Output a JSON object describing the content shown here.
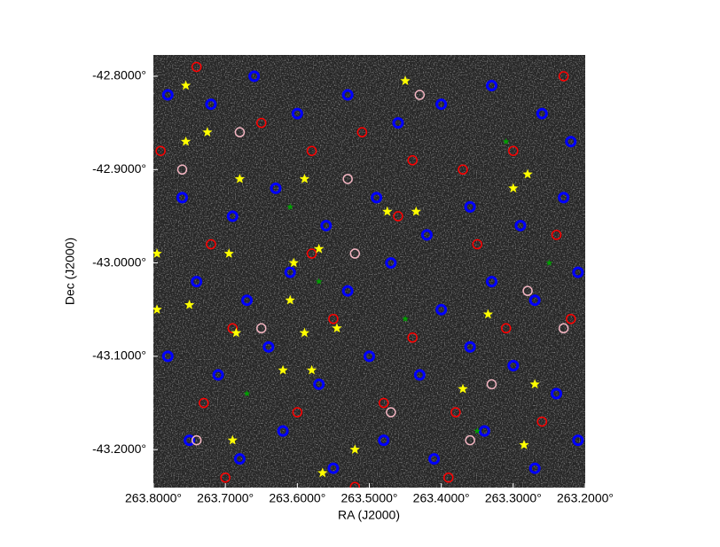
{
  "chart_data": {
    "type": "scatter",
    "xlabel": "RA (J2000)",
    "ylabel": "Dec (J2000)",
    "xlim": [
      263.8,
      263.2
    ],
    "ylim": [
      -42.7772,
      -43.2407
    ],
    "xticks": [
      {
        "value": 263.8,
        "label": "263.8000°"
      },
      {
        "value": 263.7,
        "label": "263.7000°"
      },
      {
        "value": 263.6,
        "label": "263.6000°"
      },
      {
        "value": 263.5,
        "label": "263.5000°"
      },
      {
        "value": 263.4,
        "label": "263.4000°"
      },
      {
        "value": 263.3,
        "label": "263.3000°"
      },
      {
        "value": 263.2,
        "label": "263.2000°"
      }
    ],
    "yticks": [
      {
        "value": -42.8,
        "label": "-42.8000°"
      },
      {
        "value": -42.9,
        "label": "-42.9000°"
      },
      {
        "value": -43.0,
        "label": "-43.0000°"
      },
      {
        "value": -43.1,
        "label": "-43.1000°"
      },
      {
        "value": -43.2,
        "label": "-43.2000°"
      }
    ],
    "series": [
      {
        "color": "#0000ff",
        "marker": "ring-thick",
        "x": [
          263.78,
          263.72,
          263.66,
          263.6,
          263.53,
          263.46,
          263.4,
          263.33,
          263.26,
          263.22,
          263.76,
          263.69,
          263.63,
          263.56,
          263.49,
          263.42,
          263.36,
          263.29,
          263.23,
          263.74,
          263.67,
          263.61,
          263.53,
          263.47,
          263.4,
          263.33,
          263.27,
          263.21,
          263.78,
          263.71,
          263.64,
          263.57,
          263.5,
          263.43,
          263.36,
          263.3,
          263.24,
          263.75,
          263.68,
          263.62,
          263.55,
          263.48,
          263.41,
          263.34,
          263.27,
          263.21
        ],
        "y": [
          -42.82,
          -42.83,
          -42.8,
          -42.84,
          -42.82,
          -42.85,
          -42.83,
          -42.81,
          -42.84,
          -42.87,
          -42.93,
          -42.95,
          -42.92,
          -42.96,
          -42.93,
          -42.97,
          -42.94,
          -42.96,
          -42.93,
          -43.02,
          -43.04,
          -43.01,
          -43.03,
          -43.0,
          -43.05,
          -43.02,
          -43.04,
          -43.01,
          -43.1,
          -43.12,
          -43.09,
          -43.13,
          -43.1,
          -43.12,
          -43.09,
          -43.11,
          -43.14,
          -43.19,
          -43.21,
          -43.18,
          -43.22,
          -43.19,
          -43.21,
          -43.18,
          -43.22,
          -43.19
        ]
      },
      {
        "color": "#ff0000",
        "marker": "ring",
        "x": [
          263.79,
          263.74,
          263.65,
          263.58,
          263.51,
          263.44,
          263.37,
          263.3,
          263.23,
          263.72,
          263.58,
          263.46,
          263.35,
          263.24,
          263.69,
          263.55,
          263.44,
          263.31,
          263.22,
          263.73,
          263.6,
          263.48,
          263.38,
          263.26,
          263.7,
          263.52,
          263.39
        ],
        "y": [
          -42.88,
          -42.79,
          -42.85,
          -42.88,
          -42.86,
          -42.89,
          -42.9,
          -42.88,
          -42.8,
          -42.98,
          -42.99,
          -42.95,
          -42.98,
          -42.97,
          -43.07,
          -43.06,
          -43.08,
          -43.07,
          -43.06,
          -43.15,
          -43.16,
          -43.15,
          -43.16,
          -43.17,
          -43.23,
          -43.24,
          -43.23
        ]
      },
      {
        "color": "#f4b6c2",
        "marker": "ring",
        "x": [
          263.76,
          263.68,
          263.43,
          263.52,
          263.28,
          263.65,
          263.74,
          263.47,
          263.36,
          263.33,
          263.53,
          263.23
        ],
        "y": [
          -42.9,
          -42.86,
          -42.82,
          -42.99,
          -43.03,
          -43.07,
          -43.19,
          -43.16,
          -43.19,
          -43.13,
          -42.91,
          -43.07
        ]
      },
      {
        "color": "#ffff00",
        "marker": "star",
        "x": [
          263.755,
          263.755,
          263.725,
          263.68,
          263.59,
          263.795,
          263.695,
          263.605,
          263.57,
          263.75,
          263.61,
          263.685,
          263.59,
          263.545,
          263.62,
          263.58,
          263.37,
          263.27,
          263.335,
          263.3,
          263.28,
          263.435,
          263.475,
          263.45,
          263.69,
          263.52,
          263.565,
          263.285,
          263.795
        ],
        "y": [
          -42.81,
          -42.87,
          -42.86,
          -42.91,
          -42.91,
          -42.99,
          -42.99,
          -43.0,
          -42.985,
          -43.045,
          -43.04,
          -43.075,
          -43.075,
          -43.07,
          -43.115,
          -43.115,
          -43.135,
          -43.13,
          -43.055,
          -42.92,
          -42.905,
          -42.945,
          -42.945,
          -42.805,
          -43.19,
          -43.2,
          -43.225,
          -43.195,
          -43.05
        ]
      },
      {
        "color": "#00a000",
        "marker": "star-small",
        "x": [
          263.31,
          263.57,
          263.45,
          263.67,
          263.35,
          263.61,
          263.25
        ],
        "y": [
          -42.87,
          -43.02,
          -43.06,
          -43.14,
          -43.18,
          -42.94,
          -43.0
        ]
      }
    ]
  }
}
